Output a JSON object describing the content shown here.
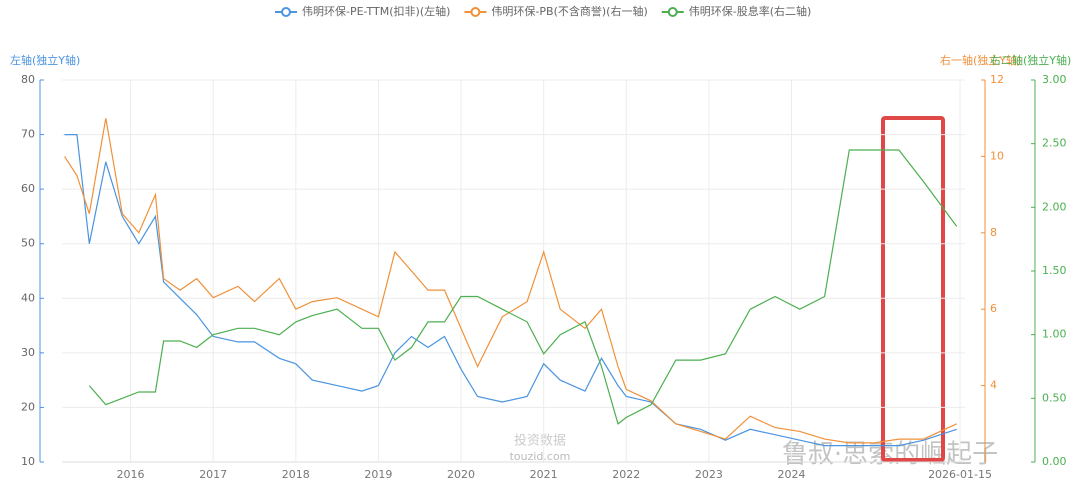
{
  "chart_data": {
    "type": "line",
    "legend": "top",
    "grid": true,
    "y_label": "左轴(独立Y轴)",
    "y2_label": "右一轴(独立Y轴)",
    "y3_label": "右二轴(独立Y轴)",
    "watermarks": [
      "投资数据",
      "touzid.com",
      "鲁叔·思索的崛起子"
    ],
    "x": [
      2015.2,
      2015.35,
      2015.5,
      2015.7,
      2015.9,
      2016.1,
      2016.3,
      2016.4,
      2016.6,
      2016.8,
      2017.0,
      2017.3,
      2017.5,
      2017.8,
      2018.0,
      2018.2,
      2018.5,
      2018.8,
      2019.0,
      2019.2,
      2019.4,
      2019.6,
      2019.8,
      2020.0,
      2020.2,
      2020.5,
      2020.8,
      2021.0,
      2021.2,
      2021.5,
      2021.7,
      2021.9,
      2022.0,
      2022.3,
      2022.6,
      2022.9,
      2023.2,
      2023.5,
      2023.8,
      2024.1,
      2024.4,
      2024.7,
      2025.0,
      2025.3,
      2025.6,
      2026.0
    ],
    "xlim": [
      2015.17,
      2026.1
    ],
    "xticks": [
      {
        "value": 2016,
        "label": "2016"
      },
      {
        "value": 2017,
        "label": "2017"
      },
      {
        "value": 2018,
        "label": "2018"
      },
      {
        "value": 2019,
        "label": "2019"
      },
      {
        "value": 2020,
        "label": "2020"
      },
      {
        "value": 2021,
        "label": "2021"
      },
      {
        "value": 2022,
        "label": "2022"
      },
      {
        "value": 2023,
        "label": "2023"
      },
      {
        "value": 2024,
        "label": "2024"
      },
      {
        "value": 2026.04,
        "label": "2026-01-15"
      }
    ],
    "ylim": [
      10,
      80
    ],
    "yticks": [
      10,
      20,
      30,
      40,
      50,
      60,
      70,
      80
    ],
    "y2lim": [
      2,
      12
    ],
    "y2ticks": [
      4,
      6,
      8,
      10,
      12
    ],
    "y3lim": [
      0,
      3
    ],
    "y3ticks": [
      {
        "value": 0,
        "label": "0.00"
      },
      {
        "value": 0.5,
        "label": "0.50"
      },
      {
        "value": 1,
        "label": "1.00"
      },
      {
        "value": 1.5,
        "label": "1.50"
      },
      {
        "value": 2,
        "label": "2.00"
      },
      {
        "value": 2.5,
        "label": "2.50"
      },
      {
        "value": 3,
        "label": "3.00"
      }
    ],
    "series": [
      {
        "name": "伟明环保-PE-TTM(扣非)(左轴)",
        "color": "#4a94e0",
        "axis": "y",
        "values": [
          70,
          70,
          50,
          65,
          55,
          50,
          55,
          43,
          40,
          37,
          33,
          32,
          32,
          29,
          28,
          25,
          24,
          23,
          24,
          30,
          33,
          31,
          33,
          27,
          22,
          21,
          22,
          28,
          25,
          23,
          29,
          24,
          22,
          21,
          17,
          16,
          14,
          16,
          15,
          14,
          13,
          13,
          13,
          13,
          14,
          16
        ]
      },
      {
        "name": "伟明环保-PB(不含商誉)(右一轴)",
        "color": "#f0913a",
        "axis": "y2",
        "values": [
          10,
          9.5,
          8.5,
          11,
          8.5,
          8.0,
          9.0,
          6.8,
          6.5,
          6.8,
          6.3,
          6.6,
          6.2,
          6.8,
          6.0,
          6.2,
          6.3,
          6.0,
          5.8,
          7.5,
          7.0,
          6.5,
          6.5,
          5.5,
          4.5,
          5.8,
          6.2,
          7.5,
          6.0,
          5.5,
          6.0,
          4.5,
          3.9,
          3.6,
          3.0,
          2.8,
          2.6,
          3.2,
          2.9,
          2.8,
          2.6,
          2.5,
          2.5,
          2.6,
          2.6,
          3.0
        ]
      },
      {
        "name": "伟明环保-股息率(右二轴)",
        "color": "#4caf50",
        "axis": "y3",
        "values": [
          null,
          null,
          0.6,
          0.45,
          0.5,
          0.55,
          0.55,
          0.95,
          0.95,
          0.9,
          1.0,
          1.05,
          1.05,
          1.0,
          1.1,
          1.15,
          1.2,
          1.05,
          1.05,
          0.8,
          0.9,
          1.1,
          1.1,
          1.3,
          1.3,
          1.2,
          1.1,
          0.85,
          1.0,
          1.1,
          0.75,
          0.3,
          0.35,
          0.45,
          0.8,
          0.8,
          0.85,
          1.2,
          1.3,
          1.2,
          1.3,
          2.45,
          2.45,
          2.45,
          2.2,
          1.85
        ]
      }
    ]
  }
}
